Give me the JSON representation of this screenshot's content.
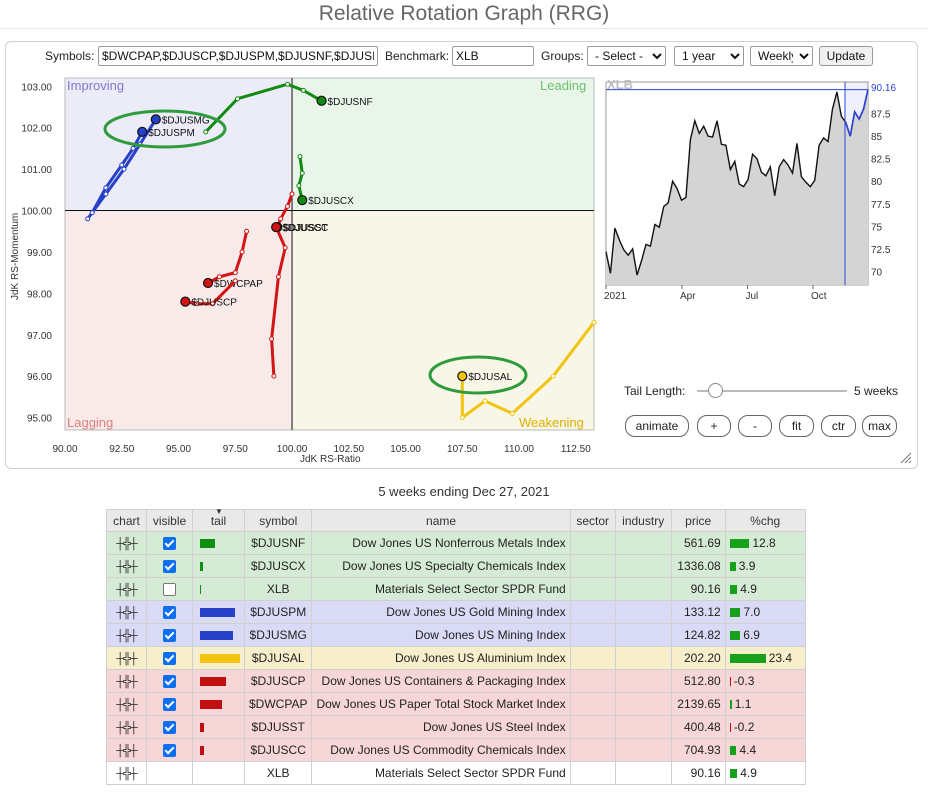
{
  "title": "Relative Rotation Graph (RRG)",
  "controls": {
    "symbols_label": "Symbols:",
    "symbols_value": "$DWCPAP,$DJUSCP,$DJUSPM,$DJUSNF,$DJUSI",
    "benchmark_label": "Benchmark:",
    "benchmark_value": "XLB",
    "groups_label": "Groups:",
    "groups_value": "- Select -",
    "period_value": "1 year",
    "frequency_value": "Weekly",
    "update_label": "Update"
  },
  "quadrants": {
    "improving": "Improving",
    "leading": "Leading",
    "lagging": "Lagging",
    "weakening": "Weakening",
    "colors": {
      "improving": "#ececf8",
      "leading": "#eaf5ea",
      "lagging": "#f9eaea",
      "weakening": "#f8f6e7"
    }
  },
  "chart_data": {
    "type": "scatter",
    "xlabel": "JdK RS-Ratio",
    "ylabel": "JdK RS-Momentum",
    "xlim": [
      90.0,
      113.3
    ],
    "ylim": [
      94.7,
      103.2
    ],
    "x_ticks": [
      "90.00",
      "92.50",
      "95.00",
      "97.50",
      "100.00",
      "102.50",
      "105.00",
      "107.50",
      "110.00",
      "112.50"
    ],
    "y_ticks": [
      "95.00",
      "96.00",
      "97.00",
      "98.00",
      "99.00",
      "100.00",
      "101.00",
      "102.00",
      "103.00"
    ],
    "series": [
      {
        "name": "$DJUSMG",
        "color": "#2740c8",
        "points": [
          [
            91.0,
            99.8
          ],
          [
            91.8,
            100.4
          ],
          [
            92.6,
            101.0
          ],
          [
            93.3,
            101.6
          ],
          [
            94.0,
            102.2
          ]
        ]
      },
      {
        "name": "$DJUSPM",
        "color": "#2740c8",
        "points": [
          [
            91.2,
            99.95
          ],
          [
            91.8,
            100.55
          ],
          [
            92.5,
            101.1
          ],
          [
            93.0,
            101.5
          ],
          [
            93.4,
            101.9
          ]
        ]
      },
      {
        "name": "$DJUSNF",
        "color": "#118a11",
        "points": [
          [
            96.2,
            101.9
          ],
          [
            97.6,
            102.7
          ],
          [
            99.8,
            103.05
          ],
          [
            100.5,
            102.9
          ],
          [
            101.3,
            102.65
          ]
        ]
      },
      {
        "name": "$DJUSCX",
        "color": "#118a11",
        "points": [
          [
            100.35,
            101.3
          ],
          [
            100.45,
            100.9
          ],
          [
            100.3,
            100.6
          ],
          [
            100.45,
            100.25
          ]
        ]
      },
      {
        "name": "$DJUSST",
        "color": "#d41414",
        "points": [
          [
            100.0,
            100.4
          ],
          [
            99.8,
            100.1
          ],
          [
            99.5,
            99.8
          ],
          [
            99.35,
            99.6
          ]
        ]
      },
      {
        "name": "$DJUSCC",
        "color": "#d41414",
        "points": [
          [
            99.2,
            96.0
          ],
          [
            99.1,
            96.9
          ],
          [
            99.4,
            98.4
          ],
          [
            99.7,
            99.1
          ],
          [
            99.3,
            99.6
          ]
        ]
      },
      {
        "name": "$DWCPAP",
        "color": "#d41414",
        "points": [
          [
            98.0,
            99.5
          ],
          [
            97.8,
            99.0
          ],
          [
            97.5,
            98.5
          ],
          [
            96.8,
            98.4
          ],
          [
            96.3,
            98.25
          ]
        ]
      },
      {
        "name": "$DJUSCP",
        "color": "#d41414",
        "points": [
          [
            97.5,
            98.3
          ],
          [
            96.5,
            97.75
          ],
          [
            95.8,
            97.75
          ],
          [
            95.3,
            97.8
          ]
        ]
      },
      {
        "name": "$DJUSAL",
        "color": "#f1c40f",
        "points": [
          [
            113.3,
            97.3
          ],
          [
            111.5,
            96.0
          ],
          [
            109.7,
            95.1
          ],
          [
            108.5,
            95.4
          ],
          [
            107.5,
            95.0
          ],
          [
            107.5,
            96.0
          ]
        ]
      }
    ],
    "highlights": [
      "$DJUSMG / $DJUSPM",
      "$DJUSAL"
    ]
  },
  "benchmark_chart": {
    "type": "area",
    "symbol": "XLB",
    "last_value": "90.16",
    "y_ticks": [
      "70",
      "72.5",
      "75",
      "77.5",
      "80",
      "82.5",
      "85",
      "87.5"
    ],
    "x_labels": [
      "2021",
      "Apr",
      "Jul",
      "Oct"
    ],
    "ylim": [
      68.5,
      91
    ],
    "values": [
      72.2,
      69.8,
      74.8,
      73.5,
      72.4,
      71.8,
      72.5,
      69.6,
      71.2,
      73.0,
      72.8,
      75.2,
      74.9,
      77.2,
      77.6,
      80.0,
      79.2,
      77.9,
      78.2,
      84.6,
      86.7,
      85.3,
      86.1,
      85.0,
      84.9,
      86.7,
      84.1,
      84.0,
      81.3,
      82.2,
      79.7,
      79.4,
      80.2,
      83.0,
      82.5,
      81.0,
      80.6,
      81.6,
      78.4,
      81.6,
      82.4,
      81.8,
      80.9,
      84.2,
      80.5,
      79.9,
      79.4,
      80.1,
      84.0,
      84.8,
      84.4,
      88.0,
      89.9,
      87.2,
      86.5,
      85.0,
      87.7,
      86.9,
      88.0,
      90.16
    ]
  },
  "tail": {
    "label": "Tail Length:",
    "value": "5 weeks",
    "fraction": 0.12
  },
  "buttons": {
    "animate": "animate",
    "plus": "+",
    "minus": "-",
    "fit": "fit",
    "ctr": "ctr",
    "max": "max"
  },
  "caption": "5 weeks ending Dec 27, 2021",
  "table": {
    "headers": {
      "chart": "chart",
      "visible": "visible",
      "tail": "tail",
      "symbol": "symbol",
      "name": "name",
      "sector": "sector",
      "industry": "industry",
      "price": "price",
      "chg": "%chg"
    },
    "rows": [
      {
        "symbol": "$DJUSNF",
        "name": "Dow Jones US Nonferrous Metals Index",
        "price": "561.69",
        "chg": "12.8",
        "chg_value": 12.8,
        "visible": true,
        "tail_color": "#109010",
        "tail_size": 15,
        "bg": "#d5ebd5"
      },
      {
        "symbol": "$DJUSCX",
        "name": "Dow Jones US Specialty Chemicals Index",
        "price": "1336.08",
        "chg": "3.9",
        "chg_value": 3.9,
        "visible": true,
        "tail_color": "#109010",
        "tail_size": 3,
        "bg": "#d5ebd5"
      },
      {
        "symbol": "XLB",
        "name": "Materials Select Sector SPDR Fund",
        "price": "90.16",
        "chg": "4.9",
        "chg_value": 4.9,
        "visible": false,
        "tail_color": "#109010",
        "tail_size": 1,
        "bg": "#d5ebd5"
      },
      {
        "symbol": "$DJUSPM",
        "name": "Dow Jones US Gold Mining Index",
        "price": "133.12",
        "chg": "7.0",
        "chg_value": 7.0,
        "visible": true,
        "tail_color": "#2740c8",
        "tail_size": 35,
        "bg": "#d9dbf6"
      },
      {
        "symbol": "$DJUSMG",
        "name": "Dow Jones US Mining Index",
        "price": "124.82",
        "chg": "6.9",
        "chg_value": 6.9,
        "visible": true,
        "tail_color": "#2740c8",
        "tail_size": 33,
        "bg": "#d9dbf6"
      },
      {
        "symbol": "$DJUSAL",
        "name": "Dow Jones US Aluminium Index",
        "price": "202.20",
        "chg": "23.4",
        "chg_value": 23.4,
        "visible": true,
        "tail_color": "#f1c40f",
        "tail_size": 40,
        "bg": "#f7efcb"
      },
      {
        "symbol": "$DJUSCP",
        "name": "Dow Jones US Containers & Packaging Index",
        "price": "512.80",
        "chg": "-0.3",
        "chg_value": -0.3,
        "visible": true,
        "tail_color": "#c20f0f",
        "tail_size": 26,
        "bg": "#f6d6d6"
      },
      {
        "symbol": "$DWCPAP",
        "name": "Dow Jones US Paper Total Stock Market Index",
        "price": "2139.65",
        "chg": "1.1",
        "chg_value": 1.1,
        "visible": true,
        "tail_color": "#c20f0f",
        "tail_size": 22,
        "bg": "#f6d6d6"
      },
      {
        "symbol": "$DJUSST",
        "name": "Dow Jones US Steel Index",
        "price": "400.48",
        "chg": "-0.2",
        "chg_value": -0.2,
        "visible": true,
        "tail_color": "#c20f0f",
        "tail_size": 4,
        "bg": "#f6d6d6"
      },
      {
        "symbol": "$DJUSCC",
        "name": "Dow Jones US Commodity Chemicals Index",
        "price": "704.93",
        "chg": "4.4",
        "chg_value": 4.4,
        "visible": true,
        "tail_color": "#c20f0f",
        "tail_size": 4,
        "bg": "#f6d6d6"
      }
    ],
    "footer": {
      "symbol": "XLB",
      "name": "Materials Select Sector SPDR Fund",
      "price": "90.16",
      "chg": "4.9",
      "chg_value": 4.9
    }
  }
}
